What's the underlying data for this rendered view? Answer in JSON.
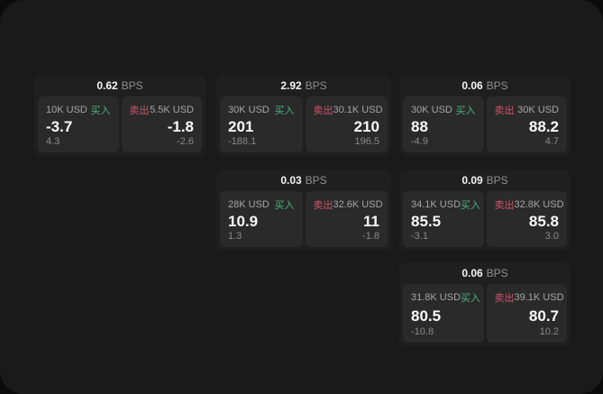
{
  "theme": {
    "page_bg": "#0b0b0b",
    "panel_bg": "#1a1a1a",
    "card_bg": "#1f1f1f",
    "tile_bg": "#2a2a2a",
    "buy_color": "#4cae7f",
    "sell_color": "#cf5468"
  },
  "bps_unit": "BPS",
  "buy_label": "买入",
  "sell_label": "卖出",
  "cards": [
    {
      "bps": "0.62",
      "buy": {
        "size": "10K USD",
        "price": "-3.7",
        "delta": "4.3"
      },
      "sell": {
        "size": "5.5K USD",
        "price": "-1.8",
        "delta": "-2.6"
      }
    },
    {
      "bps": "2.92",
      "buy": {
        "size": "30K USD",
        "price": "201",
        "delta": "-188.1"
      },
      "sell": {
        "size": "30.1K USD",
        "price": "210",
        "delta": "196.5"
      }
    },
    {
      "bps": "0.06",
      "buy": {
        "size": "30K USD",
        "price": "88",
        "delta": "-4.9"
      },
      "sell": {
        "size": "30K USD",
        "price": "88.2",
        "delta": "4.7"
      }
    },
    {
      "bps": "0.03",
      "buy": {
        "size": "28K USD",
        "price": "10.9",
        "delta": "1.3"
      },
      "sell": {
        "size": "32.6K USD",
        "price": "11",
        "delta": "-1.8"
      }
    },
    {
      "bps": "0.09",
      "buy": {
        "size": "34.1K USD",
        "price": "85.5",
        "delta": "-3.1"
      },
      "sell": {
        "size": "32.8K USD",
        "price": "85.8",
        "delta": "3.0"
      }
    },
    {
      "bps": "0.06",
      "buy": {
        "size": "31.8K USD",
        "price": "80.5",
        "delta": "-10.8"
      },
      "sell": {
        "size": "39.1K USD",
        "price": "80.7",
        "delta": "10.2"
      }
    }
  ]
}
